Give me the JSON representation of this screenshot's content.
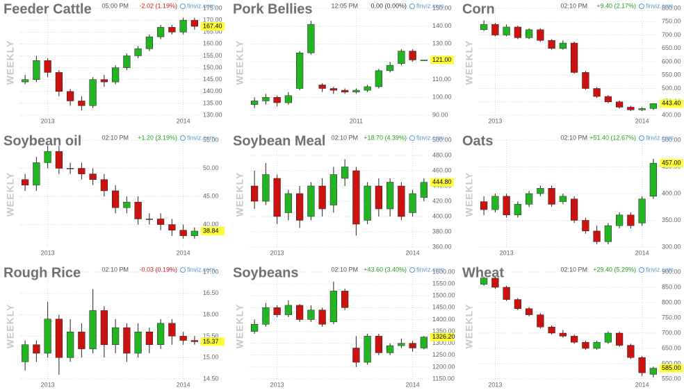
{
  "chart_data": [
    {
      "type": "candlestick",
      "title": "Feeder Cattle",
      "time": "05:00 PM",
      "change": "-2.02 (1.19%)",
      "change_color": "#cc2222",
      "source": "finviz.com",
      "side_label": "WEEKLY",
      "up_color": "#22b422",
      "down_color": "#cc1111",
      "categories": [
        null,
        null,
        "2013",
        null,
        null,
        null,
        null,
        null,
        null,
        null,
        null,
        null,
        null,
        null,
        "2014",
        null
      ],
      "open": [
        144,
        145,
        153,
        148,
        140,
        136,
        134,
        145,
        144,
        150,
        155,
        158,
        163,
        167,
        165,
        170
      ],
      "high": [
        147,
        155,
        154,
        149,
        141,
        138,
        146,
        147,
        151,
        156,
        159,
        164,
        168,
        168,
        171,
        171
      ],
      "low": [
        143,
        144,
        146,
        138,
        134,
        132,
        133,
        142,
        143,
        149,
        154,
        157,
        162,
        164,
        164,
        166
      ],
      "close": [
        145,
        153,
        148,
        140,
        136,
        134,
        145,
        144,
        150,
        155,
        158,
        163,
        167,
        165,
        170,
        167.4
      ],
      "ylim": [
        130,
        175
      ],
      "yticks": [
        {
          "value": 130,
          "label": "130.00"
        },
        {
          "value": 135,
          "label": "135.00"
        },
        {
          "value": 140,
          "label": "140.00"
        },
        {
          "value": 145,
          "label": "145.00"
        },
        {
          "value": 150,
          "label": "150.00"
        },
        {
          "value": 155,
          "label": "155.00"
        },
        {
          "value": 160,
          "label": "160.00"
        },
        {
          "value": 165,
          "label": "165.00"
        },
        {
          "value": 170,
          "label": "170.00"
        },
        {
          "value": 175,
          "label": "175.00"
        }
      ],
      "last_value": {
        "value": 167.4,
        "label": "167.40"
      }
    },
    {
      "type": "candlestick",
      "title": "Pork Bellies",
      "time": "12:05 PM",
      "change": "0.00 (0.00%)",
      "change_color": "#333333",
      "source": "finviz.com",
      "side_label": "WEEKLY",
      "up_color": "#22b422",
      "down_color": "#cc1111",
      "categories": [
        null,
        null,
        null,
        null,
        null,
        null,
        null,
        null,
        null,
        "2011",
        null,
        null,
        null,
        null,
        null,
        null
      ],
      "open": [
        96,
        98,
        100,
        97,
        105,
        125,
        107,
        105,
        104,
        103,
        104,
        106,
        115,
        119,
        126,
        121
      ],
      "high": [
        100,
        102,
        101,
        103,
        126,
        143,
        108,
        106,
        105,
        105,
        107,
        116,
        120,
        127,
        127,
        121
      ],
      "low": [
        94,
        96,
        95,
        96,
        104,
        124,
        103,
        102,
        102,
        102,
        103,
        105,
        114,
        118,
        120,
        121
      ],
      "close": [
        98,
        100,
        97,
        101,
        125,
        141,
        105,
        104,
        103,
        104,
        106,
        115,
        118,
        126,
        121,
        121
      ],
      "ylim": [
        90,
        150
      ],
      "yticks": [
        {
          "value": 90,
          "label": "90.00"
        },
        {
          "value": 100,
          "label": "100.00"
        },
        {
          "value": 110,
          "label": "110.00"
        },
        {
          "value": 120,
          "label": "120.00"
        },
        {
          "value": 130,
          "label": "130.00"
        },
        {
          "value": 140,
          "label": "140.00"
        },
        {
          "value": 150,
          "label": "150.00"
        }
      ],
      "last_value": {
        "value": 121,
        "label": "121.00"
      }
    },
    {
      "type": "candlestick",
      "title": "Corn",
      "time": "02:10 PM",
      "change": "+9.40 (2.17%)",
      "change_color": "#22a022",
      "source": "finviz.com",
      "side_label": "WEEKLY",
      "up_color": "#22b422",
      "down_color": "#cc1111",
      "categories": [
        null,
        "2013",
        null,
        null,
        null,
        null,
        null,
        null,
        null,
        null,
        null,
        null,
        null,
        null,
        "2014",
        null
      ],
      "open": [
        720,
        740,
        700,
        730,
        690,
        720,
        680,
        650,
        670,
        560,
        500,
        470,
        450,
        430,
        420,
        425
      ],
      "high": [
        755,
        745,
        740,
        735,
        725,
        725,
        685,
        680,
        675,
        565,
        505,
        475,
        455,
        435,
        430,
        445
      ],
      "low": [
        715,
        695,
        695,
        685,
        685,
        675,
        645,
        645,
        555,
        495,
        465,
        445,
        425,
        415,
        415,
        420
      ],
      "close": [
        740,
        700,
        730,
        690,
        720,
        680,
        650,
        670,
        560,
        500,
        470,
        450,
        430,
        420,
        425,
        443.4
      ],
      "ylim": [
        400,
        800
      ],
      "yticks": [
        {
          "value": 400,
          "label": "400.00"
        },
        {
          "value": 450,
          "label": "450.00"
        },
        {
          "value": 500,
          "label": "500.00"
        },
        {
          "value": 550,
          "label": "550.00"
        },
        {
          "value": 600,
          "label": "600.00"
        },
        {
          "value": 650,
          "label": "650.00"
        },
        {
          "value": 700,
          "label": "700.00"
        },
        {
          "value": 750,
          "label": "750.00"
        },
        {
          "value": 800,
          "label": "800.00"
        }
      ],
      "last_value": {
        "value": 443.4,
        "label": "443.40"
      }
    },
    {
      "type": "candlestick",
      "title": "Soybean oil",
      "time": "02:10 PM",
      "change": "+1.20 (3.19%)",
      "change_color": "#22a022",
      "source": "finviz.com",
      "side_label": "WEEKLY",
      "up_color": "#22b422",
      "down_color": "#cc1111",
      "categories": [
        null,
        null,
        "2013",
        null,
        null,
        null,
        null,
        null,
        null,
        null,
        null,
        null,
        null,
        null,
        "2014",
        null
      ],
      "open": [
        48,
        47,
        51,
        53,
        50,
        50,
        49,
        48,
        46,
        43,
        44,
        41,
        41,
        40,
        39,
        38
      ],
      "high": [
        49,
        52,
        54,
        54,
        51,
        51,
        50,
        49,
        47,
        45,
        45,
        42,
        42,
        41,
        40,
        39.5
      ],
      "low": [
        46,
        46,
        50,
        49,
        49,
        48,
        47,
        45,
        42,
        42,
        40,
        40,
        39,
        38,
        37.5,
        37.5
      ],
      "close": [
        47,
        51,
        53,
        50,
        50,
        49,
        48,
        46,
        43,
        44,
        41,
        41,
        40,
        39,
        38,
        38.84
      ],
      "ylim": [
        36,
        55
      ],
      "yticks": [
        {
          "value": 40,
          "label": "40.00"
        },
        {
          "value": 45,
          "label": "45.00"
        },
        {
          "value": 50,
          "label": "50.00"
        },
        {
          "value": 55,
          "label": "55.00"
        }
      ],
      "last_value": {
        "value": 38.84,
        "label": "38.84"
      }
    },
    {
      "type": "candlestick",
      "title": "Soybean Meal",
      "time": "02:10 PM",
      "change": "+18.70 (4.39%)",
      "change_color": "#22a022",
      "source": "finviz.com",
      "side_label": "WEEKLY",
      "up_color": "#22b422",
      "down_color": "#cc1111",
      "categories": [
        null,
        null,
        "2013",
        null,
        null,
        null,
        null,
        null,
        null,
        null,
        null,
        null,
        null,
        null,
        "2014",
        null
      ],
      "open": [
        440,
        420,
        450,
        405,
        430,
        400,
        440,
        415,
        450,
        460,
        395,
        440,
        410,
        440,
        405,
        425
      ],
      "high": [
        460,
        470,
        455,
        435,
        440,
        445,
        450,
        465,
        475,
        465,
        445,
        450,
        450,
        445,
        435,
        450
      ],
      "low": [
        410,
        415,
        390,
        395,
        385,
        395,
        400,
        405,
        440,
        375,
        390,
        400,
        400,
        395,
        400,
        420
      ],
      "close": [
        420,
        455,
        400,
        430,
        395,
        440,
        410,
        455,
        465,
        390,
        440,
        410,
        445,
        400,
        430,
        444.8
      ],
      "ylim": [
        360,
        500
      ],
      "yticks": [
        {
          "value": 360,
          "label": "360.00"
        },
        {
          "value": 380,
          "label": "380.00"
        },
        {
          "value": 400,
          "label": "400.00"
        },
        {
          "value": 420,
          "label": "420.00"
        },
        {
          "value": 440,
          "label": "440.00"
        },
        {
          "value": 460,
          "label": "460.00"
        },
        {
          "value": 480,
          "label": "480.00"
        },
        {
          "value": 500,
          "label": "500.00"
        }
      ],
      "last_value": {
        "value": 444.8,
        "label": "444.80"
      }
    },
    {
      "type": "candlestick",
      "title": "Oats",
      "time": "02:10 PM",
      "change": "+51.40 (12.67%)",
      "change_color": "#22a022",
      "source": "finviz.com",
      "side_label": "WEEKLY",
      "up_color": "#22b422",
      "down_color": "#cc1111",
      "categories": [
        null,
        null,
        "2013",
        null,
        null,
        null,
        null,
        null,
        null,
        null,
        null,
        null,
        null,
        null,
        "2014",
        null
      ],
      "open": [
        385,
        370,
        395,
        360,
        380,
        400,
        410,
        385,
        390,
        350,
        330,
        310,
        340,
        360,
        345,
        395
      ],
      "high": [
        395,
        400,
        400,
        385,
        405,
        415,
        415,
        400,
        395,
        355,
        340,
        345,
        365,
        365,
        395,
        465
      ],
      "low": [
        360,
        365,
        355,
        355,
        375,
        395,
        375,
        380,
        345,
        325,
        305,
        305,
        335,
        335,
        340,
        390
      ],
      "close": [
        370,
        395,
        360,
        380,
        400,
        410,
        380,
        395,
        350,
        330,
        310,
        340,
        360,
        340,
        390,
        457
      ],
      "ylim": [
        300,
        500
      ],
      "yticks": [
        {
          "value": 300,
          "label": "300.00"
        },
        {
          "value": 350,
          "label": "350.00"
        },
        {
          "value": 400,
          "label": "400.00"
        },
        {
          "value": 450,
          "label": "450.00"
        },
        {
          "value": 500,
          "label": "500.00"
        }
      ],
      "last_value": {
        "value": 457,
        "label": "457.00"
      }
    },
    {
      "type": "candlestick",
      "title": "Rough Rice",
      "time": "02:10 PM",
      "change": "-0.03 (0.19%)",
      "change_color": "#cc2222",
      "source": "finviz.com",
      "side_label": "WEEKLY",
      "up_color": "#22b422",
      "down_color": "#cc1111",
      "categories": [
        null,
        null,
        "2013",
        null,
        null,
        null,
        null,
        null,
        null,
        null,
        null,
        null,
        null,
        null,
        "2014",
        null
      ],
      "open": [
        14.9,
        15.3,
        15.1,
        15.9,
        15.0,
        15.6,
        15.2,
        16.1,
        15.3,
        15.7,
        15.1,
        15.6,
        15.3,
        15.8,
        15.5,
        15.4
      ],
      "high": [
        15.4,
        15.4,
        16.3,
        16.0,
        15.9,
        15.8,
        16.6,
        16.2,
        15.9,
        15.8,
        15.8,
        15.7,
        15.9,
        15.9,
        15.6,
        15.5
      ],
      "low": [
        14.7,
        14.9,
        15.0,
        14.6,
        14.9,
        15.0,
        15.1,
        15.0,
        15.1,
        14.9,
        15.0,
        15.1,
        15.2,
        15.3,
        15.3,
        15.3
      ],
      "close": [
        15.3,
        15.1,
        15.9,
        15.0,
        15.6,
        15.2,
        16.1,
        15.3,
        15.7,
        15.1,
        15.6,
        15.3,
        15.8,
        15.5,
        15.4,
        15.37
      ],
      "ylim": [
        14.5,
        17
      ],
      "yticks": [
        {
          "value": 14.5,
          "label": "14.50"
        },
        {
          "value": 15,
          "label": "15.00"
        },
        {
          "value": 15.5,
          "label": "15.50"
        },
        {
          "value": 16,
          "label": "16.00"
        },
        {
          "value": 16.5,
          "label": "16.50"
        },
        {
          "value": 17,
          "label": "17.00"
        }
      ],
      "last_value": {
        "value": 15.37,
        "label": "15.37"
      }
    },
    {
      "type": "candlestick",
      "title": "Soybeans",
      "time": "02:10 PM",
      "change": "+43.60 (3.40%)",
      "change_color": "#22a022",
      "source": "finviz.com",
      "side_label": "WEEKLY",
      "up_color": "#22b422",
      "down_color": "#cc1111",
      "categories": [
        null,
        null,
        "2013",
        null,
        null,
        null,
        null,
        null,
        null,
        null,
        null,
        null,
        null,
        null,
        "2014",
        null
      ],
      "open": [
        1350,
        1380,
        1450,
        1420,
        1460,
        1400,
        1440,
        1390,
        1520,
        1280,
        1220,
        1330,
        1260,
        1290,
        1300,
        1280
      ],
      "high": [
        1400,
        1470,
        1460,
        1480,
        1465,
        1460,
        1450,
        1560,
        1530,
        1330,
        1340,
        1340,
        1300,
        1320,
        1310,
        1330
      ],
      "low": [
        1340,
        1370,
        1410,
        1410,
        1390,
        1390,
        1370,
        1380,
        1440,
        1200,
        1210,
        1250,
        1250,
        1280,
        1265,
        1275
      ],
      "close": [
        1380,
        1450,
        1420,
        1460,
        1400,
        1440,
        1380,
        1520,
        1450,
        1220,
        1330,
        1260,
        1290,
        1300,
        1280,
        1326.2
      ],
      "ylim": [
        1150,
        1600
      ],
      "yticks": [
        {
          "value": 1150,
          "label": "1150.00"
        },
        {
          "value": 1200,
          "label": "1200.00"
        },
        {
          "value": 1250,
          "label": "1250.00"
        },
        {
          "value": 1300,
          "label": "1300.00"
        },
        {
          "value": 1350,
          "label": "1350.00"
        },
        {
          "value": 1400,
          "label": "1400.00"
        },
        {
          "value": 1450,
          "label": "1450.00"
        },
        {
          "value": 1500,
          "label": "1500.00"
        },
        {
          "value": 1550,
          "label": "1550.00"
        },
        {
          "value": 1600,
          "label": "1600.00"
        }
      ],
      "last_value": {
        "value": 1326.2,
        "label": "1326.20"
      }
    },
    {
      "type": "candlestick",
      "title": "Wheat",
      "time": "02:10 PM",
      "change": "+29.40 (5.29%)",
      "change_color": "#22a022",
      "source": "finviz.com",
      "side_label": "WEEKLY",
      "up_color": "#22b422",
      "down_color": "#cc1111",
      "categories": [
        null,
        "2013",
        null,
        null,
        null,
        null,
        null,
        null,
        null,
        null,
        null,
        null,
        null,
        null,
        "2014",
        null
      ],
      "open": [
        860,
        880,
        850,
        810,
        780,
        760,
        720,
        700,
        690,
        670,
        650,
        670,
        700,
        660,
        620,
        565
      ],
      "high": [
        885,
        885,
        855,
        815,
        785,
        765,
        725,
        710,
        695,
        675,
        675,
        705,
        705,
        665,
        625,
        590
      ],
      "low": [
        855,
        845,
        805,
        775,
        755,
        715,
        695,
        685,
        665,
        645,
        645,
        665,
        655,
        615,
        560,
        555
      ],
      "close": [
        880,
        850,
        810,
        780,
        760,
        720,
        700,
        690,
        670,
        650,
        670,
        700,
        660,
        620,
        570,
        585
      ],
      "ylim": [
        550,
        900
      ],
      "yticks": [
        {
          "value": 550,
          "label": "550.00"
        },
        {
          "value": 600,
          "label": "600.00"
        },
        {
          "value": 650,
          "label": "650.00"
        },
        {
          "value": 700,
          "label": "700.00"
        },
        {
          "value": 750,
          "label": "750.00"
        },
        {
          "value": 800,
          "label": "800.00"
        },
        {
          "value": 850,
          "label": "850.00"
        },
        {
          "value": 900,
          "label": "900.00"
        }
      ],
      "last_value": {
        "value": 585,
        "label": "585.00"
      }
    }
  ]
}
